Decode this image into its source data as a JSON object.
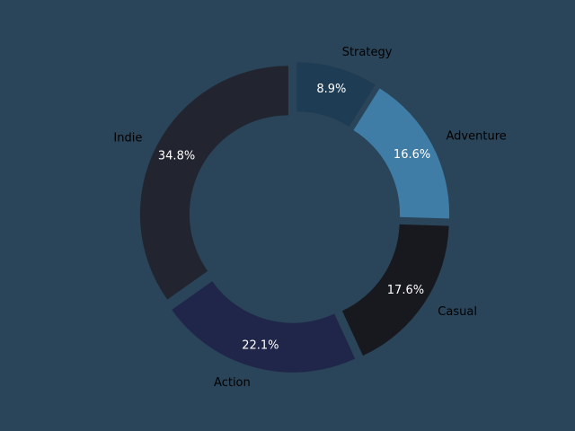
{
  "chart_data": {
    "type": "pie",
    "style": "donut",
    "title": "",
    "background": "#2a4459",
    "categories": [
      "Strategy",
      "Adventure",
      "Casual",
      "Action",
      "Indie"
    ],
    "values": [
      8.9,
      16.6,
      17.6,
      22.1,
      34.8
    ],
    "value_labels": [
      "8.9%",
      "16.6%",
      "17.6%",
      "22.1%",
      "34.8%"
    ],
    "colors": [
      "#1f3c55",
      "#3f7ca6",
      "#18191f",
      "#20264a",
      "#22252f"
    ],
    "start_angle_deg": 90,
    "direction": "clockwise",
    "exploded": true,
    "legend": "none"
  }
}
